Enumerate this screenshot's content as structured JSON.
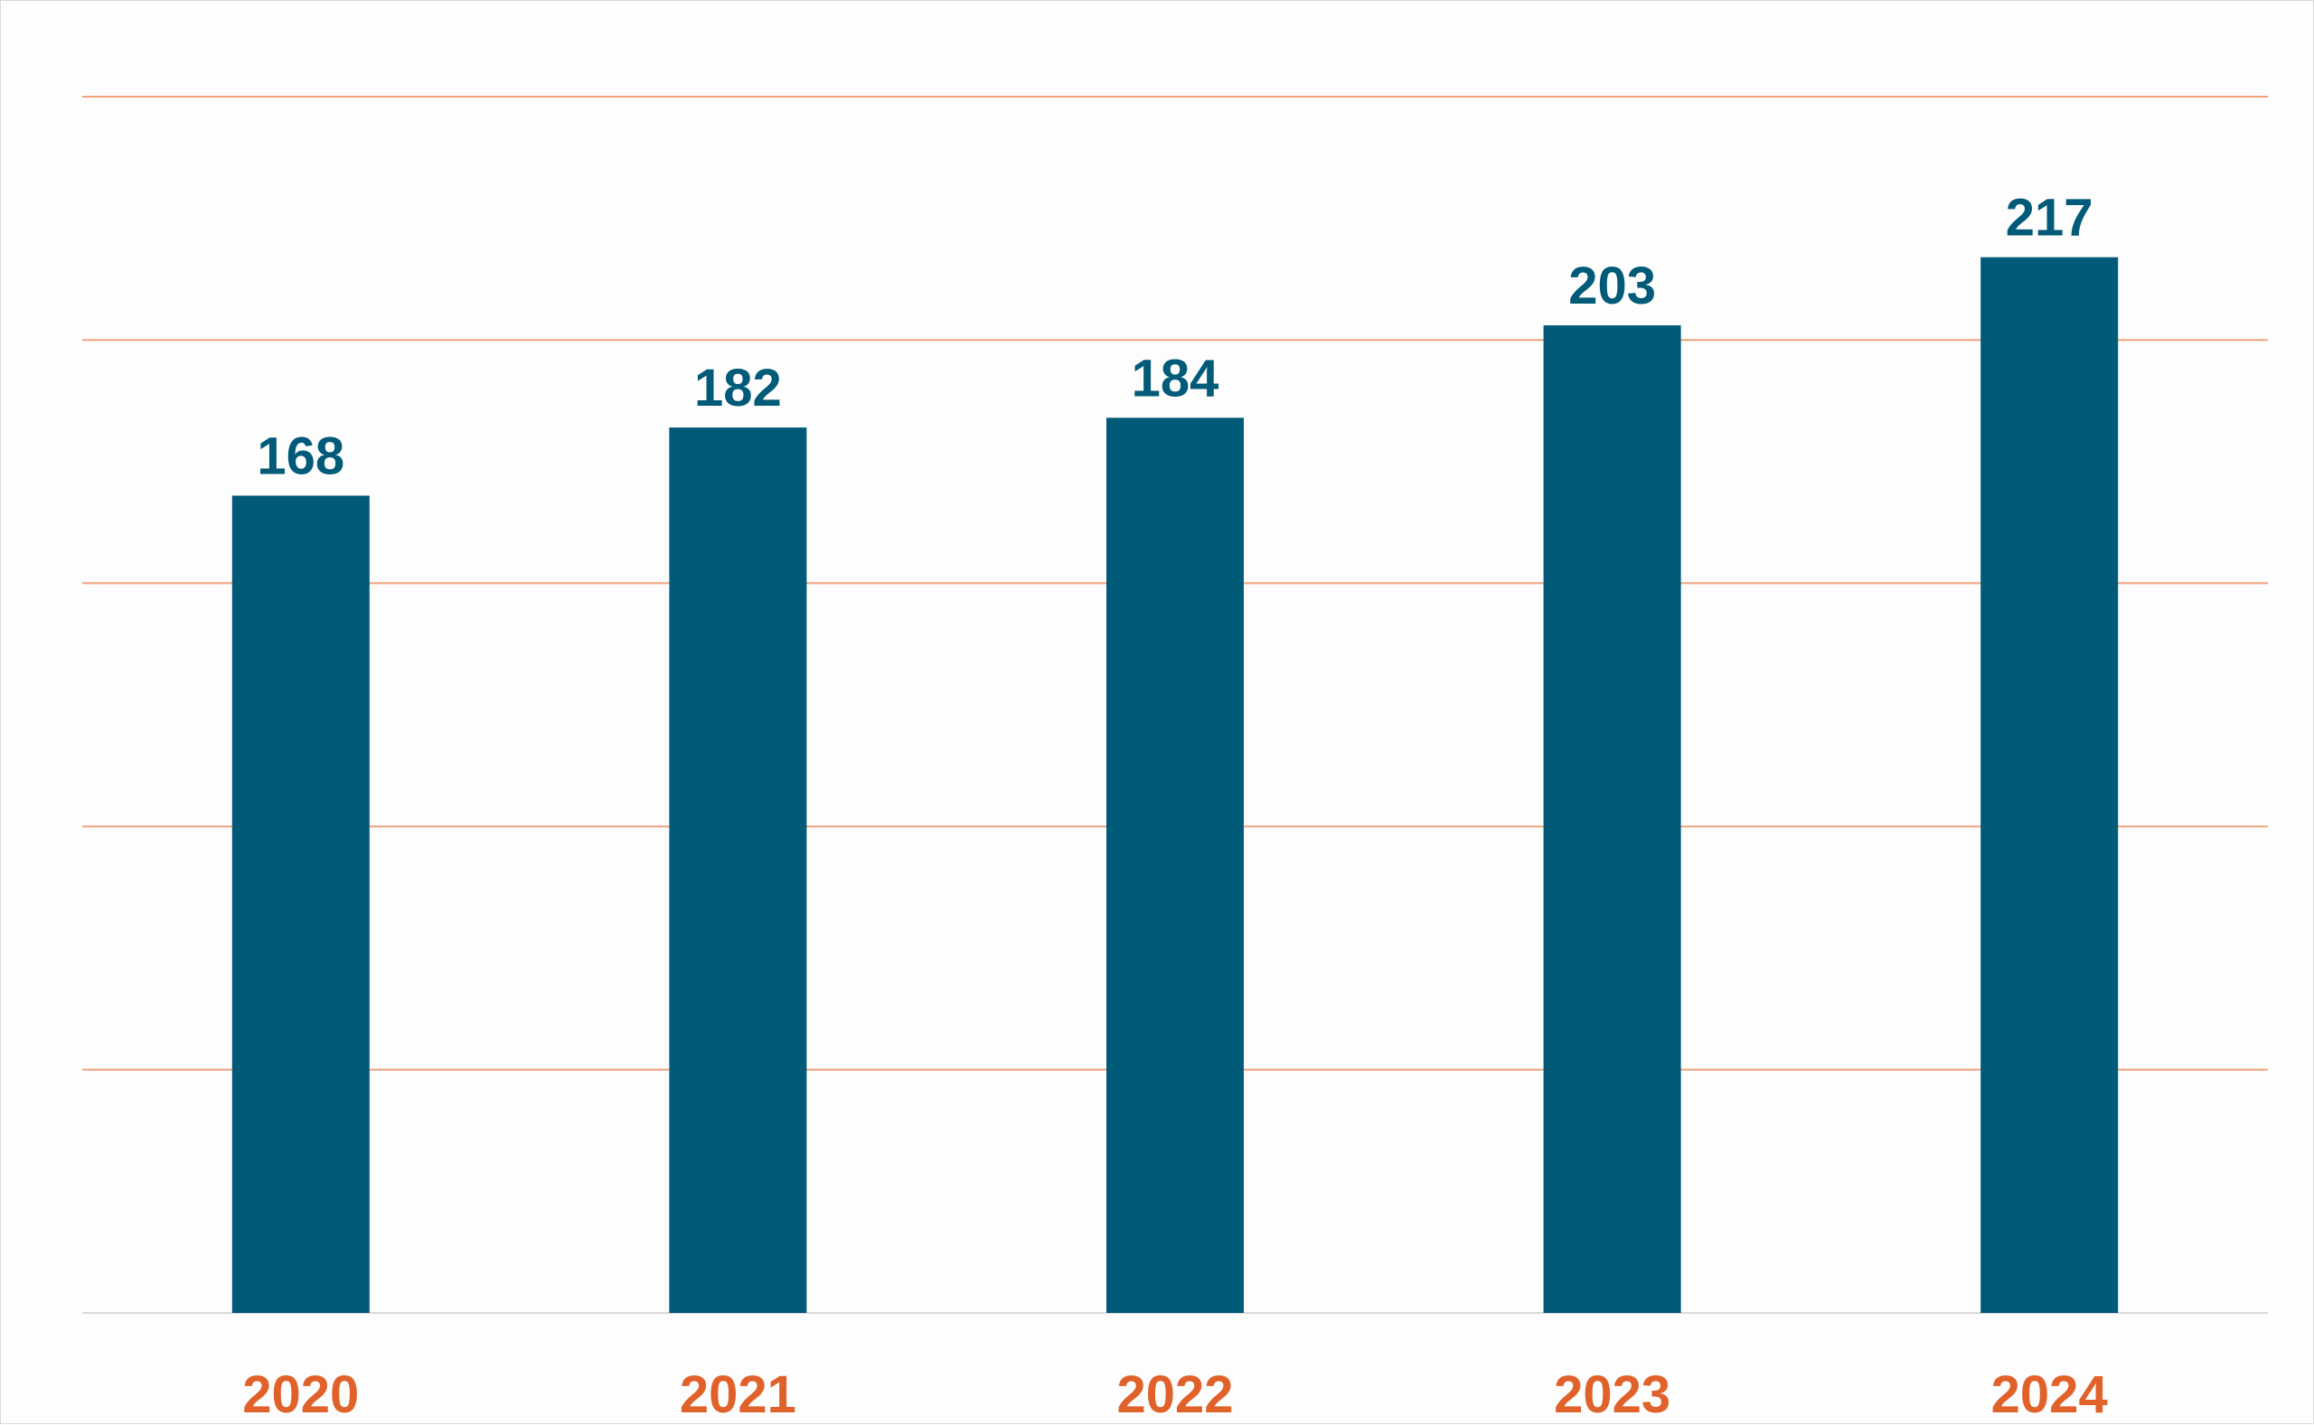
{
  "chart_data": {
    "type": "bar",
    "categories": [
      "2020",
      "2021",
      "2022",
      "2023",
      "2024"
    ],
    "values": [
      168,
      182,
      184,
      203,
      217
    ],
    "data_labels": [
      "168",
      "182",
      "184",
      "203",
      "217"
    ],
    "title": "",
    "xlabel": "",
    "ylabel": "",
    "ylim": [
      0,
      250
    ],
    "y_gridline_step": 50,
    "grid": true,
    "y_tick_labels_shown": false,
    "legend": "none"
  },
  "colors": {
    "bar": "#005a78",
    "value_label": "#005a78",
    "category_label": "#e0622a",
    "gridline": "#f0a27c",
    "baseline": "#d9d9d9",
    "background": "#fdfdfd"
  }
}
